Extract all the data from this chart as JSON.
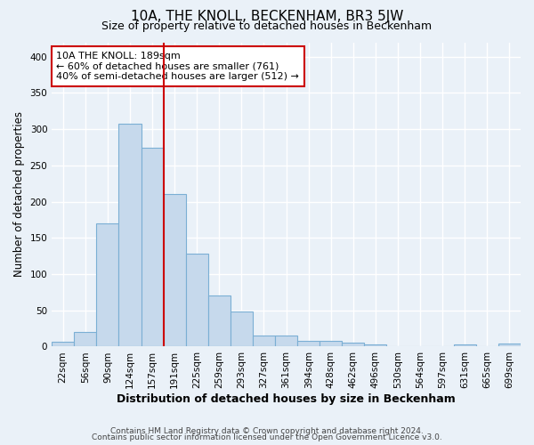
{
  "title": "10A, THE KNOLL, BECKENHAM, BR3 5JW",
  "subtitle": "Size of property relative to detached houses in Beckenham",
  "xlabel": "Distribution of detached houses by size in Beckenham",
  "ylabel": "Number of detached properties",
  "footnote1": "Contains HM Land Registry data © Crown copyright and database right 2024.",
  "footnote2": "Contains public sector information licensed under the Open Government Licence v3.0.",
  "bin_labels": [
    "22sqm",
    "56sqm",
    "90sqm",
    "124sqm",
    "157sqm",
    "191sqm",
    "225sqm",
    "259sqm",
    "293sqm",
    "327sqm",
    "361sqm",
    "394sqm",
    "428sqm",
    "462sqm",
    "496sqm",
    "530sqm",
    "564sqm",
    "597sqm",
    "631sqm",
    "665sqm",
    "699sqm"
  ],
  "bar_values": [
    7,
    20,
    170,
    308,
    275,
    210,
    128,
    70,
    48,
    15,
    15,
    8,
    8,
    5,
    3,
    1,
    1,
    0,
    3,
    0,
    4
  ],
  "bar_color": "#c6d9ec",
  "bar_edge_color": "#7bafd4",
  "vline_color": "#cc0000",
  "annotation_text": "10A THE KNOLL: 189sqm\n← 60% of detached houses are smaller (761)\n40% of semi-detached houses are larger (512) →",
  "annotation_box_color": "#ffffff",
  "annotation_box_edge": "#cc0000",
  "ylim": [
    0,
    420
  ],
  "yticks": [
    0,
    50,
    100,
    150,
    200,
    250,
    300,
    350,
    400
  ],
  "background_color": "#eaf1f8",
  "plot_bg_color": "#eaf1f8",
  "grid_color": "#ffffff",
  "title_fontsize": 11,
  "subtitle_fontsize": 9,
  "tick_fontsize": 7.5,
  "ylabel_fontsize": 8.5,
  "xlabel_fontsize": 9,
  "footnote_fontsize": 6.5
}
